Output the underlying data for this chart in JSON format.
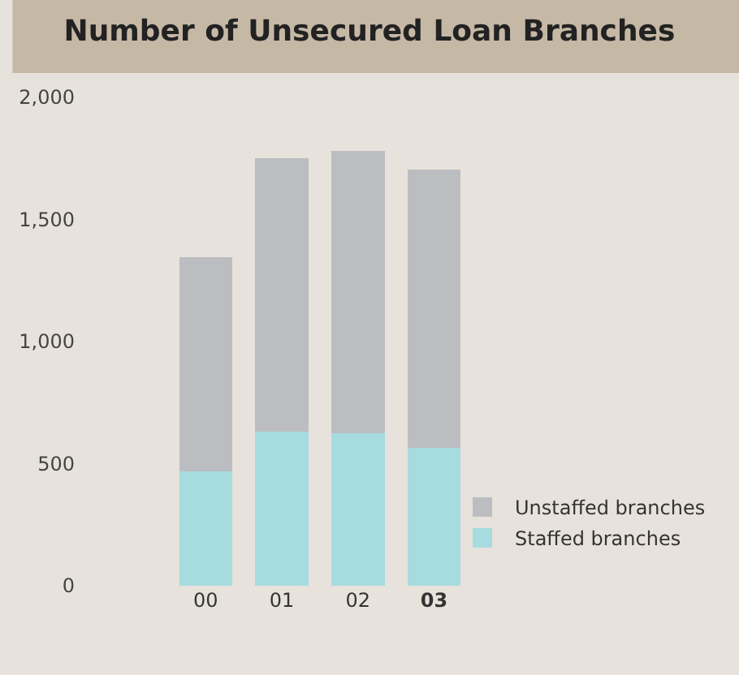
{
  "chart_data": {
    "type": "bar",
    "title": "Number of Unsecured Loan Branches",
    "stacked": true,
    "categories": [
      "00",
      "01",
      "02",
      "03"
    ],
    "series": [
      {
        "name": "Staffed branches",
        "color": "#a6dbdf",
        "values": [
          470,
          630,
          625,
          565
        ]
      },
      {
        "name": "Unstaffed branches",
        "color": "#bcbdc1",
        "values": [
          875,
          1120,
          1155,
          1140
        ]
      }
    ],
    "ylim": [
      0,
      2000
    ],
    "yticks": [
      0,
      500,
      {
        "value": 1000,
        "label": "1,000"
      },
      {
        "value": 1500,
        "label": "1,500"
      },
      {
        "value": 2000,
        "label": "2,000"
      }
    ],
    "grid": false,
    "legend": "bottom right"
  }
}
